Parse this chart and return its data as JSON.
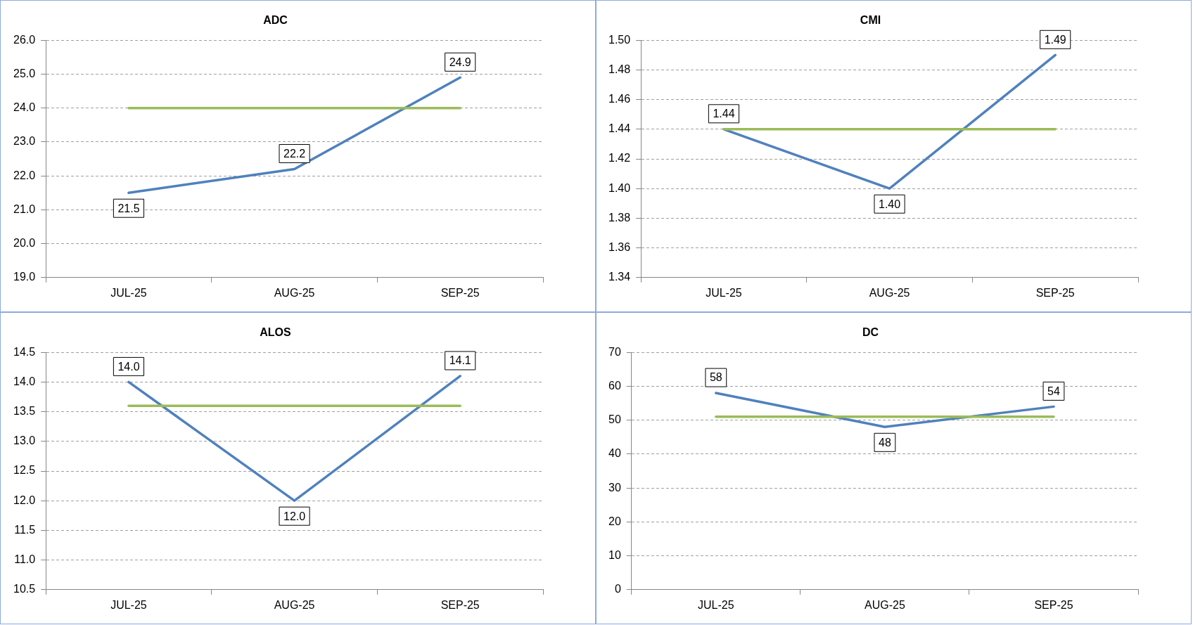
{
  "chart_data": [
    {
      "type": "line",
      "title": "ADC",
      "categories": [
        "JUL-25",
        "AUG-25",
        "SEP-25"
      ],
      "series": [
        {
          "color": "#4f81bd",
          "values": [
            21.5,
            22.2,
            24.9
          ],
          "value_labels": [
            "21.5",
            "22.2",
            "24.9"
          ]
        },
        {
          "color": "#9bbb59",
          "values": [
            24.0,
            24.0,
            24.0
          ]
        }
      ],
      "ylim": [
        19,
        26
      ],
      "yticks": [
        {
          "value": 19,
          "label": "19.0"
        },
        {
          "value": 20,
          "label": "20.0"
        },
        {
          "value": 21,
          "label": "21.0"
        },
        {
          "value": 22,
          "label": "22.0"
        },
        {
          "value": 23,
          "label": "23.0"
        },
        {
          "value": 24,
          "label": "24.0"
        },
        {
          "value": 25,
          "label": "25.0"
        },
        {
          "value": 26,
          "label": "26.0"
        }
      ],
      "grid": "y",
      "legend": false,
      "marker": "none",
      "line_style": "solid"
    },
    {
      "type": "line",
      "title": "CMI",
      "categories": [
        "JUL-25",
        "AUG-25",
        "SEP-25"
      ],
      "series": [
        {
          "color": "#4f81bd",
          "values": [
            1.44,
            1.4,
            1.49
          ],
          "value_labels": [
            "1.44",
            "1.40",
            "1.49"
          ]
        },
        {
          "color": "#9bbb59",
          "values": [
            1.44,
            1.44,
            1.44
          ]
        }
      ],
      "ylim": [
        1.34,
        1.5
      ],
      "yticks": [
        1.34,
        1.36,
        1.38,
        {
          "value": 1.4,
          "label": "1.40"
        },
        1.42,
        1.44,
        1.46,
        1.48,
        {
          "value": 1.5,
          "label": "1.50"
        }
      ],
      "grid": "y",
      "legend": false,
      "marker": "none",
      "line_style": "solid"
    },
    {
      "type": "line",
      "title": "ALOS",
      "categories": [
        "JUL-25",
        "AUG-25",
        "SEP-25"
      ],
      "series": [
        {
          "color": "#4f81bd",
          "values": [
            14.0,
            12.0,
            14.1
          ],
          "value_labels": [
            "14.0",
            "12.0",
            "14.1"
          ]
        },
        {
          "color": "#9bbb59",
          "values": [
            13.6,
            13.6,
            13.6
          ]
        }
      ],
      "ylim": [
        10.5,
        14.5
      ],
      "yticks": [
        10.5,
        {
          "value": 11,
          "label": "11.0"
        },
        11.5,
        {
          "value": 12,
          "label": "12.0"
        },
        12.5,
        {
          "value": 13,
          "label": "13.0"
        },
        13.5,
        {
          "value": 14,
          "label": "14.0"
        },
        14.5
      ],
      "grid": "y",
      "legend": false,
      "marker": "none",
      "line_style": "solid"
    },
    {
      "type": "line",
      "title": "DC",
      "categories": [
        "JUL-25",
        "AUG-25",
        "SEP-25"
      ],
      "series": [
        {
          "color": "#4f81bd",
          "values": [
            58,
            48,
            54
          ],
          "value_labels": [
            "58",
            "48",
            "54"
          ]
        },
        {
          "color": "#9bbb59",
          "values": [
            51,
            51,
            51
          ]
        }
      ],
      "ylim": [
        0,
        70
      ],
      "yticks": [
        0,
        10,
        20,
        30,
        40,
        50,
        60,
        70
      ],
      "grid": "y",
      "legend": false,
      "marker": "none",
      "line_style": "solid"
    }
  ]
}
